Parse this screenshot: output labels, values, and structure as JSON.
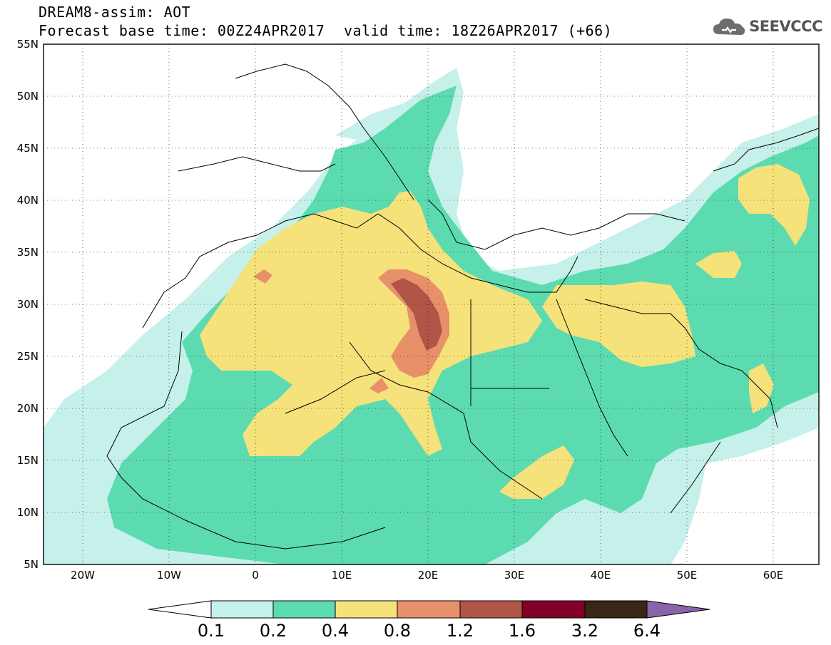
{
  "title": {
    "line1": "DREAM8-assim: AOT",
    "line2": "Forecast base time: 00Z24APR2017",
    "valid": "valid time: 18Z26APR2017 (+66)"
  },
  "logo": {
    "text": "SEEVCCC",
    "icon": "cloud-icon"
  },
  "axes": {
    "lat_labels": [
      "55N",
      "50N",
      "45N",
      "40N",
      "35N",
      "30N",
      "25N",
      "20N",
      "15N",
      "10N",
      "5N"
    ],
    "lon_labels": [
      "20W",
      "10W",
      "0",
      "10E",
      "20E",
      "30E",
      "40E",
      "50E",
      "60E"
    ],
    "lat_range": [
      5,
      55
    ],
    "lon_range": [
      -25,
      65
    ]
  },
  "colorbar": {
    "levels": [
      "0.1",
      "0.2",
      "0.4",
      "0.8",
      "1.2",
      "1.6",
      "3.2",
      "6.4"
    ],
    "colors": [
      "#ffffff",
      "#c6f0ea",
      "#5cdbb0",
      "#f5e27a",
      "#e8906a",
      "#b05548",
      "#820028",
      "#3a2614",
      "#8a64a8"
    ]
  }
}
